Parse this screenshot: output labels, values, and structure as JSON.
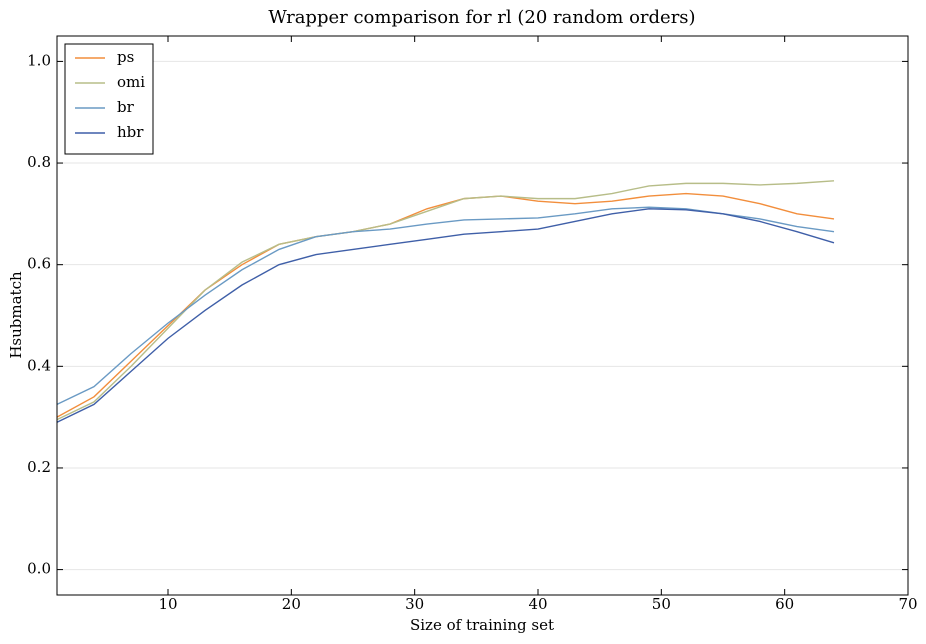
{
  "chart_data": {
    "type": "line",
    "title": "Wrapper comparison for rl (20 random orders)",
    "x_label": "Size of training set",
    "y_label": "Hsubmatch",
    "x": [
      1,
      4,
      7,
      10,
      13,
      16,
      19,
      22,
      25,
      28,
      31,
      34,
      37,
      40,
      43,
      46,
      49,
      52,
      55,
      58,
      61,
      64
    ],
    "series": [
      {
        "name": "ps",
        "color": "#f28e3c",
        "values": [
          0.3,
          0.34,
          0.41,
          0.48,
          0.55,
          0.6,
          0.64,
          0.655,
          0.665,
          0.68,
          0.71,
          0.73,
          0.735,
          0.725,
          0.72,
          0.725,
          0.735,
          0.74,
          0.735,
          0.72,
          0.7,
          0.69
        ]
      },
      {
        "name": "omi",
        "color": "#b7bd88",
        "values": [
          0.295,
          0.33,
          0.4,
          0.475,
          0.55,
          0.605,
          0.64,
          0.655,
          0.665,
          0.68,
          0.705,
          0.73,
          0.735,
          0.73,
          0.73,
          0.74,
          0.755,
          0.76,
          0.76,
          0.757,
          0.76,
          0.765
        ]
      },
      {
        "name": "br",
        "color": "#6a9ac4",
        "values": [
          0.325,
          0.36,
          0.425,
          0.485,
          0.54,
          0.59,
          0.63,
          0.655,
          0.665,
          0.67,
          0.68,
          0.688,
          0.69,
          0.692,
          0.7,
          0.71,
          0.713,
          0.71,
          0.7,
          0.69,
          0.675,
          0.665
        ]
      },
      {
        "name": "hbr",
        "color": "#3f5fa8",
        "values": [
          0.29,
          0.325,
          0.39,
          0.455,
          0.51,
          0.56,
          0.6,
          0.62,
          0.63,
          0.64,
          0.65,
          0.66,
          0.665,
          0.67,
          0.685,
          0.7,
          0.71,
          0.708,
          0.7,
          0.685,
          0.665,
          0.643
        ]
      }
    ],
    "xlim": [
      1,
      70
    ],
    "ylim": [
      -0.05,
      1.05
    ],
    "xticks": [
      10,
      20,
      30,
      40,
      50,
      60,
      70
    ],
    "yticks": [
      {
        "value": 0,
        "label": "0.0"
      },
      0.2,
      0.4,
      0.6,
      0.8,
      {
        "value": 1,
        "label": "1.0"
      }
    ],
    "grid": true,
    "legend": "upper left"
  }
}
